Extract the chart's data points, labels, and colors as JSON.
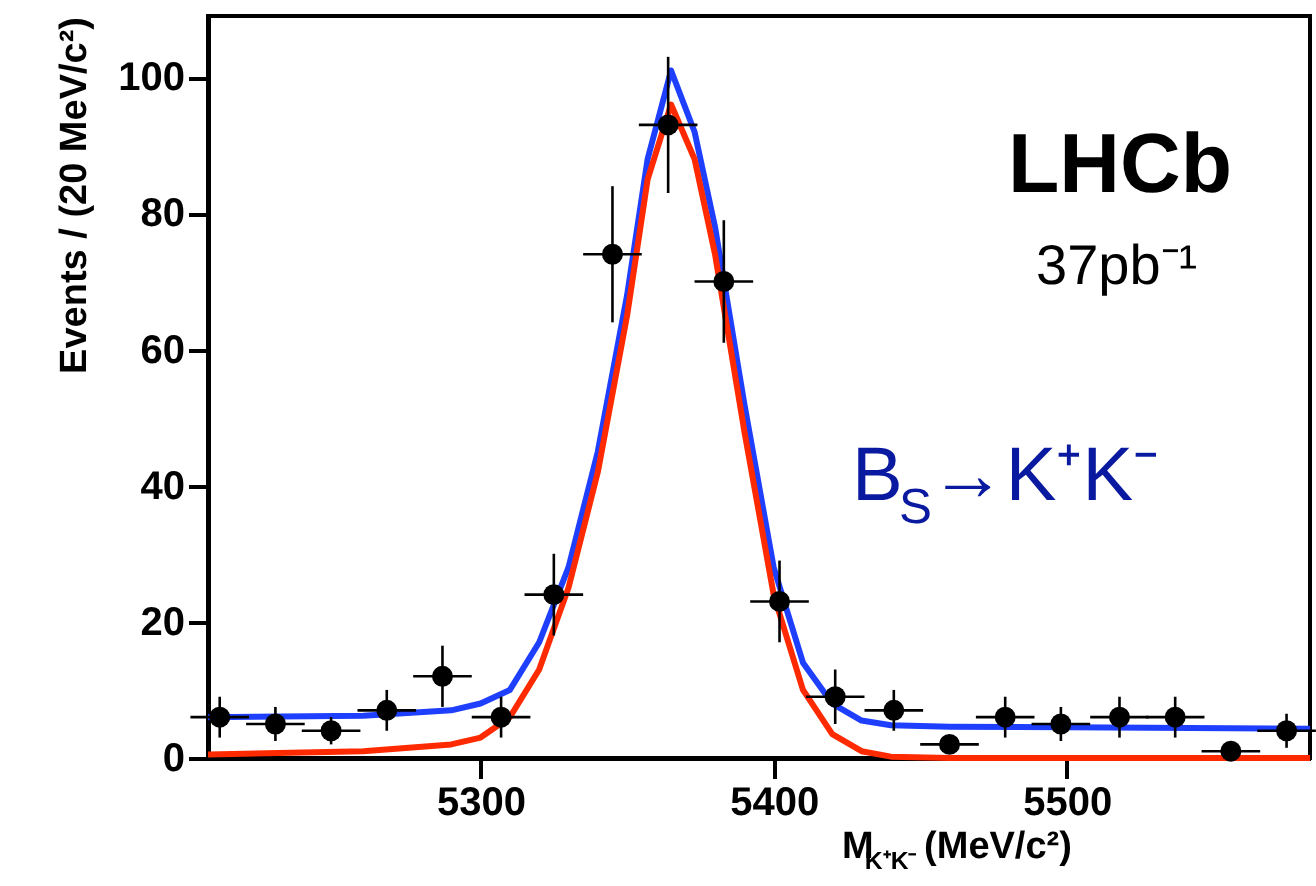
{
  "chart_data": {
    "type": "scatter",
    "xlabel": "M$_{K⁺K⁻}$ (MeV/c²)",
    "ylabel": "Events / (20 MeV/c²)",
    "annotations": [
      "LHCb",
      "37pb⁻¹",
      "B$_{S}$→K⁺K⁻"
    ],
    "xlim": [
      5207,
      5583
    ],
    "xticks": [
      5300,
      5400,
      5500
    ],
    "ylim": [
      0,
      109
    ],
    "yticks": [
      0,
      20,
      40,
      60,
      80,
      100
    ],
    "grid": false,
    "marker": "circle",
    "x": [
      5211,
      5230,
      5249,
      5268,
      5287,
      5307,
      5325,
      5345,
      5364,
      5383,
      5402,
      5421,
      5441,
      5460,
      5479,
      5498,
      5518,
      5537,
      5556,
      5575
    ],
    "series": [
      {
        "color": "#000000",
        "values": [
          6,
          5,
          4,
          7,
          12,
          6,
          24,
          74,
          93,
          70,
          23,
          9,
          7,
          2,
          6,
          5,
          6,
          6,
          1,
          4
        ],
        "errors": [
          3,
          2.5,
          2,
          3,
          4.5,
          3,
          6,
          10,
          10,
          9,
          6,
          4,
          3,
          null,
          3,
          2.5,
          3,
          3,
          null,
          2.5
        ],
        "xerrors": [
          10,
          10,
          10,
          10,
          10,
          10,
          10,
          10,
          10,
          10,
          10,
          10,
          10,
          10,
          10,
          10,
          10,
          10,
          10,
          10
        ]
      },
      {
        "type": "line",
        "color": "#1f3fff",
        "line_style": "solid",
        "marker": "none",
        "x": [
          5207,
          5260,
          5290,
          5300,
          5310,
          5320,
          5330,
          5340,
          5350,
          5357,
          5365,
          5373,
          5380,
          5390,
          5400,
          5410,
          5420,
          5430,
          5440,
          5460,
          5500,
          5583
        ],
        "values": [
          6,
          6.2,
          7,
          8,
          10,
          17,
          28,
          45,
          68,
          88,
          101,
          92,
          78,
          52,
          28,
          14,
          8,
          5.5,
          4.8,
          4.6,
          4.5,
          4.3
        ]
      },
      {
        "type": "line",
        "color": "#ff2a00",
        "line_style": "solid",
        "marker": "none",
        "x": [
          5207,
          5260,
          5290,
          5300,
          5310,
          5320,
          5330,
          5340,
          5350,
          5357,
          5365,
          5373,
          5380,
          5390,
          5400,
          5410,
          5420,
          5430,
          5440,
          5460,
          5583
        ],
        "values": [
          0.5,
          1,
          2,
          3,
          6,
          13,
          25,
          42,
          65,
          85,
          96,
          88,
          74,
          48,
          24,
          10,
          3.5,
          1,
          0.2,
          0,
          0
        ]
      }
    ]
  }
}
